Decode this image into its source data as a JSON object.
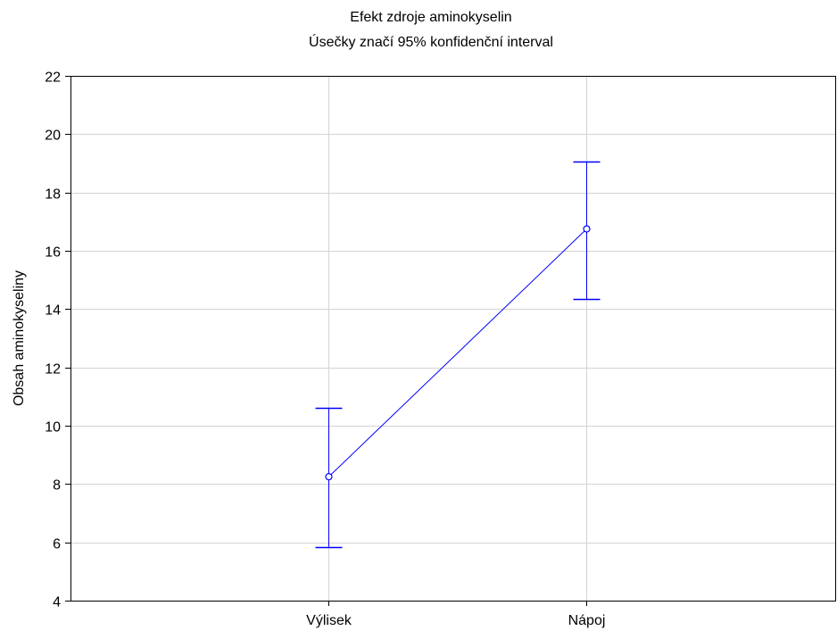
{
  "chart_data": {
    "type": "line",
    "title": "Efekt zdroje aminokyselin",
    "subtitle": "Úsečky značí 95% konfidenční interval",
    "xlabel": "",
    "ylabel": "Obsah aminokyseliny",
    "categories": [
      "Výlisek",
      "Nápoj"
    ],
    "ylim": [
      4,
      22
    ],
    "yticks": [
      4,
      6,
      8,
      10,
      12,
      14,
      16,
      18,
      20,
      22
    ],
    "grid": true,
    "legend": "none",
    "series": [
      {
        "values": [
          8.25,
          16.75
        ],
        "ci_lower": [
          5.85,
          14.35
        ],
        "ci_upper": [
          10.6,
          19.05
        ]
      }
    ],
    "colors": {
      "series": "#0000ff",
      "grid": "#d3d3d3",
      "axis": "#000000"
    }
  }
}
